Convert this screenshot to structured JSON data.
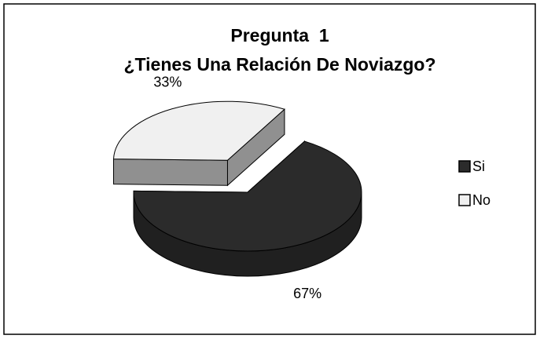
{
  "chart_data": {
    "type": "pie",
    "title": "Pregunta  1",
    "subtitle": "¿Tienes Una Relación De Noviazgo?",
    "categories": [
      "Si",
      "No"
    ],
    "values": [
      67,
      33
    ],
    "value_labels": [
      "67%",
      "33%"
    ],
    "colors": [
      "#2b2b2b",
      "#f0f0f0"
    ],
    "legend": "right",
    "explode": [
      false,
      true
    ]
  }
}
